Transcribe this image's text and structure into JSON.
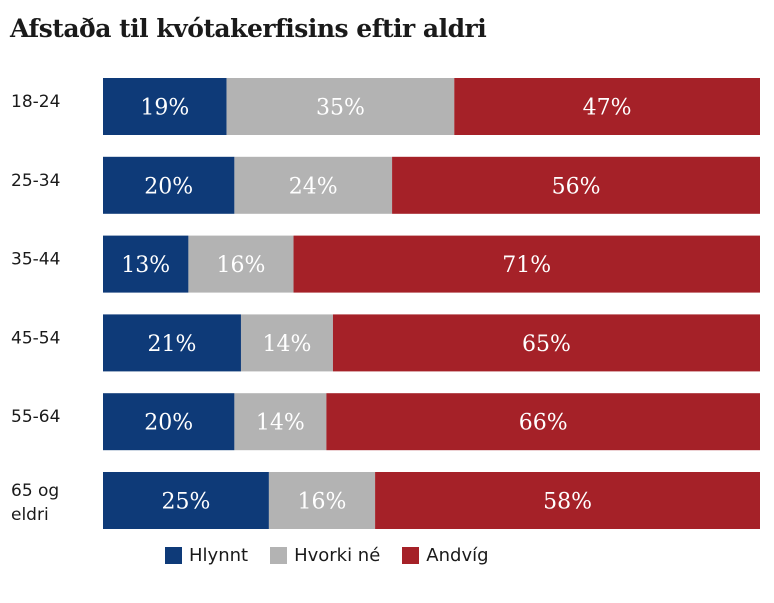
{
  "chart_data": {
    "type": "bar",
    "orientation": "horizontal",
    "stacked": true,
    "title": "Afstaða til kvótakerfisins eftir aldri",
    "categories": [
      [
        "18-24"
      ],
      [
        "25-34"
      ],
      [
        "35-44"
      ],
      [
        "45-54"
      ],
      [
        "55-64"
      ],
      [
        "65 og",
        "eldri"
      ]
    ],
    "series": [
      {
        "name": "Hlynnt",
        "color": "#0e3a78",
        "values": [
          19,
          20,
          13,
          21,
          20,
          25
        ]
      },
      {
        "name": "Hvorki né",
        "color": "#b3b3b3",
        "values": [
          35,
          24,
          16,
          14,
          14,
          16
        ]
      },
      {
        "name": "Andvíg",
        "color": "#a52128",
        "values": [
          47,
          56,
          71,
          65,
          66,
          58
        ]
      }
    ],
    "value_suffix": "%",
    "legend_position": "bottom",
    "grid": false
  }
}
